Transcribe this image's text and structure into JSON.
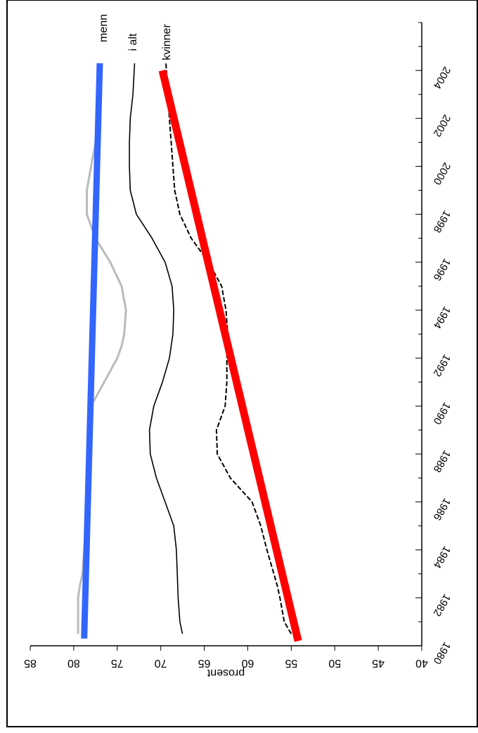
{
  "chart_data": {
    "type": "line",
    "xlabel": "",
    "ylabel": "prosent",
    "x_ticks": [
      1980,
      1982,
      1984,
      1986,
      1988,
      1990,
      1992,
      1994,
      1996,
      1998,
      2000,
      2002,
      2004
    ],
    "y_ticks": [
      40,
      45,
      50,
      55,
      60,
      65,
      70,
      75,
      80,
      85
    ],
    "xlim": [
      1980,
      2006
    ],
    "ylim": [
      40,
      85
    ],
    "grid": false,
    "legend_position": "inline labels at right end of lines",
    "series": [
      {
        "name": "menn",
        "color": "#bbbbbb",
        "dash": "",
        "width": 3,
        "x": [
          1980.5,
          1981,
          1982,
          1982.5,
          1983,
          1984,
          1985,
          1986,
          1987,
          1988,
          1989,
          1990,
          1991,
          1992,
          1992.5,
          1993,
          1994,
          1995,
          1996,
          1997,
          1998,
          1999,
          2000,
          2001,
          2002,
          2003,
          2004.3
        ],
        "y": [
          79.5,
          79.5,
          79.5,
          79.3,
          79.0,
          78.8,
          78.6,
          78.4,
          78.3,
          78.2,
          78.1,
          78.0,
          76.5,
          75.0,
          74.5,
          74.2,
          74.0,
          74.5,
          75.8,
          77.5,
          78.5,
          78.5,
          78.0,
          77.5,
          77.2,
          77.0,
          76.8
        ]
      },
      {
        "name": "i alt",
        "color": "#000000",
        "dash": "",
        "width": 1.6,
        "x": [
          1980.5,
          1981,
          1982,
          1983,
          1984,
          1985,
          1986,
          1987,
          1988,
          1989,
          1990,
          1991,
          1992,
          1993,
          1994,
          1995,
          1996,
          1997,
          1998,
          1999,
          2000,
          2001,
          2002,
          2003,
          2004.3
        ],
        "y": [
          67.5,
          67.8,
          68.0,
          68.1,
          68.2,
          68.5,
          69.5,
          70.5,
          71.2,
          71.3,
          70.8,
          69.8,
          69.0,
          68.6,
          68.5,
          68.7,
          69.5,
          71.0,
          72.8,
          73.5,
          73.6,
          73.6,
          73.5,
          73.2,
          73.0
        ]
      },
      {
        "name": "kvinner",
        "color": "#000000",
        "dash": "7 3",
        "width": 2,
        "x": [
          1980.5,
          1981,
          1982,
          1982.5,
          1983,
          1984,
          1985,
          1986,
          1987,
          1988,
          1989,
          1990,
          1991,
          1992,
          1993,
          1994,
          1995,
          1996,
          1997,
          1998,
          1999,
          2000,
          2001,
          2002,
          2003,
          2004.3
        ],
        "y": [
          55.0,
          55.8,
          56.3,
          56.6,
          57.0,
          57.8,
          58.5,
          59.5,
          62.0,
          63.5,
          63.6,
          62.6,
          62.4,
          62.4,
          62.3,
          62.5,
          63.0,
          64.5,
          66.5,
          67.8,
          68.4,
          68.6,
          68.8,
          69.0,
          69.2,
          69.4
        ]
      },
      {
        "color": "#3366ff",
        "dash": "",
        "width": 9,
        "x": [
          1980.3,
          2004.3
        ],
        "y": [
          78.8,
          77.0
        ]
      },
      {
        "color": "#ff0000",
        "dash": "",
        "width": 11,
        "x": [
          1980.2,
          2004.0
        ],
        "y": [
          54.2,
          69.8
        ]
      }
    ]
  }
}
